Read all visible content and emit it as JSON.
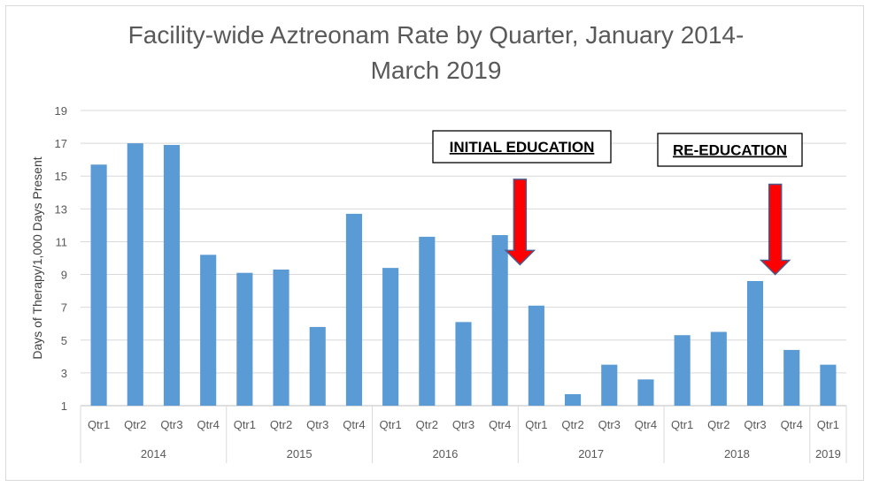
{
  "chart_data": {
    "type": "bar",
    "title_lines": [
      "Facility-wide Aztreonam Rate by Quarter, January 2014-",
      "March 2019"
    ],
    "ylabel": "Days of Therapy/1,000 Days Present",
    "xlabel": "",
    "ylim": [
      1,
      19
    ],
    "yticks": [
      1,
      3,
      5,
      7,
      9,
      11,
      13,
      15,
      17,
      19
    ],
    "grid": true,
    "bar_color": "#5b9bd5",
    "categories": [
      {
        "quarter": "Qtr1",
        "year": "2014"
      },
      {
        "quarter": "Qtr2",
        "year": "2014"
      },
      {
        "quarter": "Qtr3",
        "year": "2014"
      },
      {
        "quarter": "Qtr4",
        "year": "2014"
      },
      {
        "quarter": "Qtr1",
        "year": "2015"
      },
      {
        "quarter": "Qtr2",
        "year": "2015"
      },
      {
        "quarter": "Qtr3",
        "year": "2015"
      },
      {
        "quarter": "Qtr4",
        "year": "2015"
      },
      {
        "quarter": "Qtr1",
        "year": "2016"
      },
      {
        "quarter": "Qtr2",
        "year": "2016"
      },
      {
        "quarter": "Qtr3",
        "year": "2016"
      },
      {
        "quarter": "Qtr4",
        "year": "2016"
      },
      {
        "quarter": "Qtr1",
        "year": "2017"
      },
      {
        "quarter": "Qtr2",
        "year": "2017"
      },
      {
        "quarter": "Qtr3",
        "year": "2017"
      },
      {
        "quarter": "Qtr4",
        "year": "2017"
      },
      {
        "quarter": "Qtr1",
        "year": "2018"
      },
      {
        "quarter": "Qtr2",
        "year": "2018"
      },
      {
        "quarter": "Qtr3",
        "year": "2018"
      },
      {
        "quarter": "Qtr4",
        "year": "2018"
      },
      {
        "quarter": "Qtr1",
        "year": "2019"
      }
    ],
    "year_groups": [
      {
        "year": "2014",
        "count": 4
      },
      {
        "year": "2015",
        "count": 4
      },
      {
        "year": "2016",
        "count": 4
      },
      {
        "year": "2017",
        "count": 4
      },
      {
        "year": "2018",
        "count": 4
      },
      {
        "year": "2019",
        "count": 1
      }
    ],
    "values": [
      15.7,
      17.0,
      16.9,
      10.2,
      9.1,
      9.3,
      5.8,
      12.7,
      9.4,
      11.3,
      6.1,
      11.4,
      7.1,
      1.7,
      3.5,
      2.6,
      5.3,
      5.5,
      8.6,
      4.4,
      3.5
    ],
    "annotations": [
      {
        "text": "INITIAL EDUCATION",
        "arrow_at_index": 11,
        "arrow_from": 14.8,
        "arrow_to": 9.6
      },
      {
        "text": "RE-EDUCATION",
        "arrow_at_index": 18,
        "arrow_from": 14.5,
        "arrow_to": 9.0
      }
    ],
    "arrow_color": "#ff0000"
  }
}
